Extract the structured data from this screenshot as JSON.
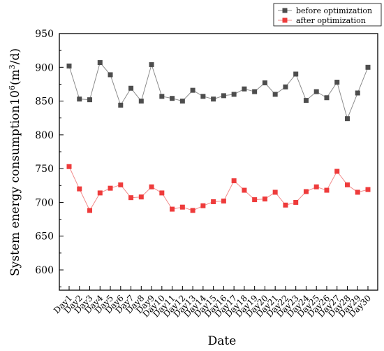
{
  "chart_data": {
    "type": "line",
    "title": "",
    "xlabel": "Date",
    "ylabel_main": "System energy consumption10",
    "ylabel_sup": "6",
    "ylabel_unit_open": "(m",
    "ylabel_unit_sup": "3",
    "ylabel_unit_close": "/d)",
    "ylim": [
      570,
      950
    ],
    "yticks": [
      600,
      650,
      700,
      750,
      800,
      850,
      900,
      950
    ],
    "grid": false,
    "legend_position": "top-right",
    "categories": [
      "Day1",
      "Day2",
      "Day3",
      "Day4",
      "Day5",
      "Day6",
      "Day7",
      "Day8",
      "Day9",
      "Day10",
      "Day11",
      "Day12",
      "Day13",
      "Day14",
      "Day15",
      "Day16",
      "Day17",
      "Day18",
      "Day19",
      "Day20",
      "Day21",
      "Day22",
      "Day23",
      "Day24",
      "Day25",
      "Day26",
      "Day27",
      "Day28",
      "Day29",
      "Day30"
    ],
    "series": [
      {
        "name": "before optimization",
        "color": "#4d4d4d",
        "line_color": "#8c8c8c",
        "values": [
          902,
          853,
          852,
          907,
          889,
          844,
          869,
          850,
          904,
          857,
          854,
          850,
          866,
          857,
          853,
          858,
          860,
          868,
          864,
          877,
          860,
          871,
          890,
          851,
          864,
          855,
          878,
          824,
          862,
          900
        ]
      },
      {
        "name": "after optimization",
        "color": "#ee3b3b",
        "line_color": "#f28c8c",
        "values": [
          753,
          720,
          688,
          714,
          721,
          726,
          707,
          708,
          723,
          714,
          690,
          693,
          688,
          695,
          701,
          702,
          732,
          718,
          704,
          705,
          715,
          696,
          700,
          716,
          723,
          718,
          746,
          726,
          715,
          719
        ]
      }
    ]
  }
}
